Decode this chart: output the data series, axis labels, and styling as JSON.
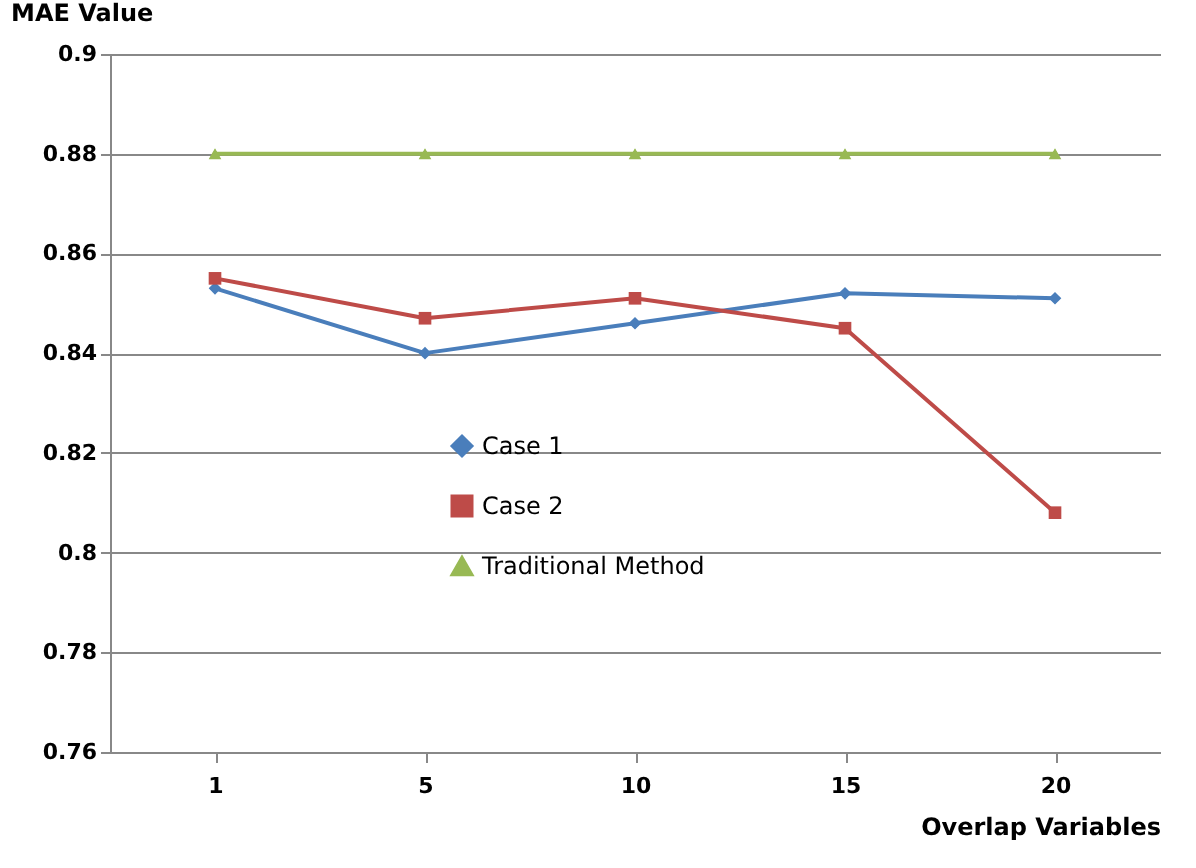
{
  "chart_data": {
    "type": "line",
    "xlabel": "Overlap Variables",
    "ylabel": "MAE Value",
    "categories": [
      "1",
      "5",
      "10",
      "15",
      "20"
    ],
    "series": [
      {
        "name": "Case 1",
        "color": "#4a7ebb",
        "marker": "diamond",
        "values": [
          0.853,
          0.84,
          0.846,
          0.852,
          0.851
        ]
      },
      {
        "name": "Case 2",
        "color": "#be4b48",
        "marker": "square",
        "values": [
          0.855,
          0.847,
          0.851,
          0.845,
          0.808
        ]
      },
      {
        "name": "Traditional Method",
        "color": "#98b954",
        "marker": "triangle",
        "values": [
          0.88,
          0.88,
          0.88,
          0.88,
          0.88
        ]
      }
    ],
    "ylim": [
      0.76,
      0.9
    ],
    "yticks": [
      0.76,
      0.78,
      0.8,
      0.82,
      0.84,
      0.86,
      0.88,
      0.9
    ],
    "grid": "y",
    "legend": "center",
    "line_style": "solid"
  }
}
